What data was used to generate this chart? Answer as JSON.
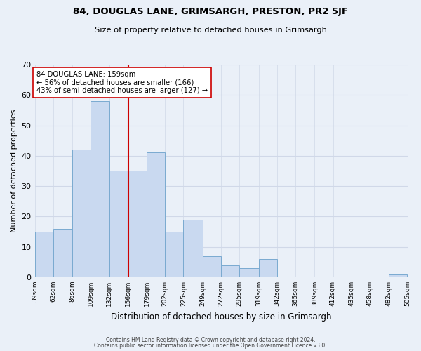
{
  "title1": "84, DOUGLAS LANE, GRIMSARGH, PRESTON, PR2 5JF",
  "title2": "Size of property relative to detached houses in Grimsargh",
  "xlabel": "Distribution of detached houses by size in Grimsargh",
  "ylabel": "Number of detached properties",
  "bar_values_full": [
    15,
    16,
    42,
    58,
    35,
    35,
    41,
    15,
    19,
    7,
    4,
    3,
    6,
    0,
    0,
    0,
    0,
    0,
    0,
    1
  ],
  "all_edges": [
    39,
    62,
    86,
    109,
    132,
    156,
    179,
    202,
    225,
    249,
    272,
    295,
    319,
    342,
    365,
    389,
    412,
    435,
    458,
    482,
    505
  ],
  "tick_labels": [
    "39sqm",
    "62sqm",
    "86sqm",
    "109sqm",
    "132sqm",
    "156sqm",
    "179sqm",
    "202sqm",
    "225sqm",
    "249sqm",
    "272sqm",
    "295sqm",
    "319sqm",
    "342sqm",
    "365sqm",
    "389sqm",
    "412sqm",
    "435sqm",
    "458sqm",
    "482sqm",
    "505sqm"
  ],
  "bar_color": "#c9d9f0",
  "bar_edge_color": "#7aaad0",
  "vline_x": 156,
  "vline_color": "#cc0000",
  "annotation_line1": "84 DOUGLAS LANE: 159sqm",
  "annotation_line2": "← 56% of detached houses are smaller (166)",
  "annotation_line3": "43% of semi-detached houses are larger (127) →",
  "annotation_box_color": "#ffffff",
  "annotation_box_edge": "#cc0000",
  "ylim": [
    0,
    70
  ],
  "yticks": [
    0,
    10,
    20,
    30,
    40,
    50,
    60,
    70
  ],
  "grid_color": "#d0d8e8",
  "background_color": "#eaf0f8",
  "footer1": "Contains HM Land Registry data © Crown copyright and database right 2024.",
  "footer2": "Contains public sector information licensed under the Open Government Licence v3.0."
}
